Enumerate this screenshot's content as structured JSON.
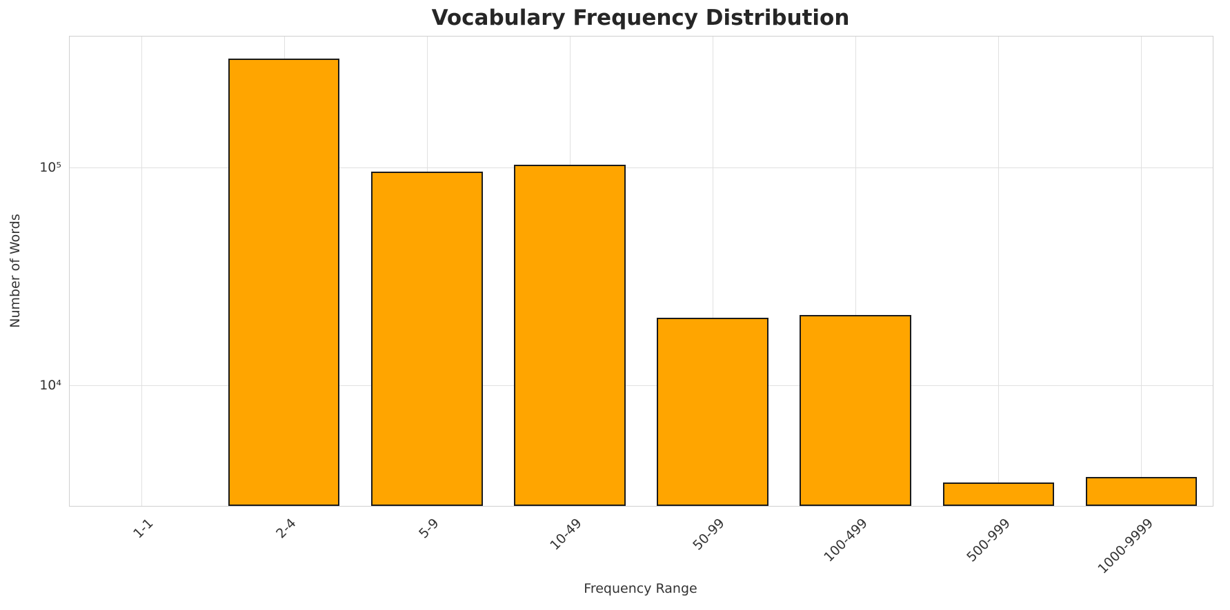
{
  "chart_data": {
    "type": "bar",
    "title": "Vocabulary Frequency Distribution",
    "xlabel": "Frequency Range",
    "ylabel": "Number of Words",
    "categories": [
      "1-1",
      "2-4",
      "5-9",
      "10-49",
      "50-99",
      "100-499",
      "500-999",
      "1000-9999"
    ],
    "values": [
      0,
      317000,
      96000,
      103000,
      20500,
      21000,
      3600,
      3800
    ],
    "yscale": "log",
    "ylim": [
      2800,
      400000
    ],
    "yticks": [
      {
        "value": 10000,
        "label": "10⁴"
      },
      {
        "value": 100000,
        "label": "10⁵"
      }
    ],
    "bar_color": "#FFA500",
    "bar_edge_color": "#1a1a1a",
    "grid": true,
    "grid_color": "#e0e0e0",
    "legend": "none"
  }
}
